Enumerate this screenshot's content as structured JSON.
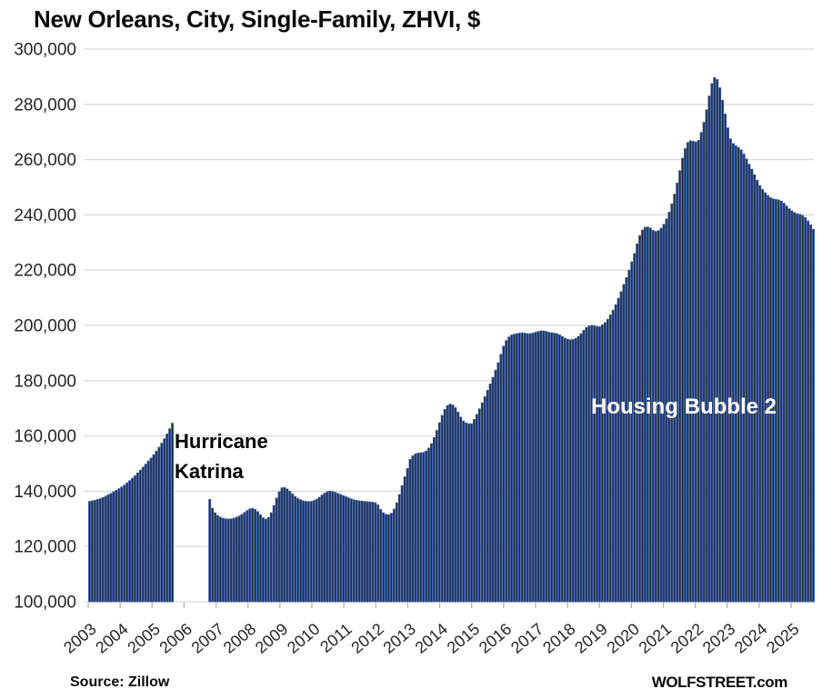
{
  "title": "New Orleans, City, Single-Family, ZHVI, $",
  "annotations": {
    "katrina_line1": "Hurricane",
    "katrina_line2": "Katrina",
    "bubble": "Housing Bubble 2"
  },
  "footer": {
    "source": "Source: Zillow",
    "brand": "WOLFSTREET.com"
  },
  "colors": {
    "bar_fill": "#1e2a40",
    "bar_stroke": "#35589a",
    "gridline": "#d9d9d9",
    "axis_tick": "#b3b3b3",
    "axis_text": "#262626",
    "annotation_dark": "#000000",
    "annotation_light": "#ffffff"
  },
  "chart_data": {
    "type": "bar",
    "title": "New Orleans, City, Single-Family, ZHVI, $",
    "xlabel": "",
    "ylabel": "",
    "unit": "$",
    "frequency": "monthly",
    "x_start": "2003-01",
    "x_end": "2025-08",
    "gap": {
      "from": "2005-09",
      "to": "2006-09",
      "annotation": "Hurricane Katrina"
    },
    "grid": true,
    "legend": "none",
    "ylim": [
      100000,
      300000
    ],
    "y_tick_step": 20000,
    "y_tick_labels": [
      "100,000",
      "120,000",
      "140,000",
      "160,000",
      "180,000",
      "200,000",
      "220,000",
      "240,000",
      "260,000",
      "280,000",
      "300,000"
    ],
    "x_tick_labels": [
      "2003",
      "2004",
      "2005",
      "2006",
      "2007",
      "2008",
      "2009",
      "2010",
      "2011",
      "2012",
      "2013",
      "2014",
      "2015",
      "2016",
      "2017",
      "2018",
      "2019",
      "2020",
      "2021",
      "2022",
      "2023",
      "2024",
      "2025"
    ],
    "values": [
      136300,
      136500,
      136700,
      137000,
      137300,
      137700,
      138200,
      138700,
      139200,
      139800,
      140300,
      140900,
      141500,
      142200,
      143000,
      143800,
      144700,
      145600,
      146600,
      147600,
      148700,
      149800,
      150900,
      152000,
      153200,
      154500,
      155900,
      157400,
      159000,
      160700,
      162600,
      164600,
      null,
      null,
      null,
      null,
      null,
      null,
      null,
      null,
      null,
      null,
      null,
      null,
      null,
      137000,
      133800,
      132200,
      131200,
      130600,
      130200,
      130000,
      129900,
      130000,
      130200,
      130600,
      131000,
      131600,
      132300,
      133000,
      133600,
      133800,
      133400,
      132600,
      131500,
      130400,
      129900,
      130500,
      132200,
      134800,
      137500,
      139800,
      141200,
      141300,
      140800,
      140000,
      139000,
      138100,
      137400,
      136900,
      136500,
      136300,
      136200,
      136300,
      136600,
      137100,
      137800,
      138600,
      139300,
      139800,
      140000,
      139900,
      139600,
      139200,
      138800,
      138400,
      138000,
      137600,
      137200,
      136900,
      136700,
      136500,
      136400,
      136300,
      136200,
      136100,
      136000,
      135800,
      135000,
      133400,
      132200,
      131600,
      131500,
      132000,
      133500,
      135800,
      138800,
      142000,
      145200,
      148200,
      151500,
      152800,
      153500,
      153800,
      153900,
      154000,
      154500,
      155600,
      157200,
      159400,
      162000,
      164800,
      167400,
      169600,
      171000,
      171500,
      171200,
      170200,
      168600,
      166800,
      165400,
      164700,
      164400,
      164400,
      166000,
      167800,
      169800,
      172000,
      174200,
      176500,
      178800,
      181200,
      183800,
      186500,
      189500,
      192500,
      194500,
      195800,
      196500,
      196800,
      197000,
      197200,
      197300,
      197200,
      197000,
      197000,
      197200,
      197500,
      197800,
      198000,
      198000,
      197800,
      197500,
      197300,
      197200,
      197000,
      196600,
      196000,
      195400,
      195000,
      194800,
      194900,
      195300,
      196000,
      197000,
      198200,
      199200,
      199800,
      200000,
      199900,
      199600,
      199500,
      200200,
      201000,
      202200,
      203800,
      205500,
      207500,
      209800,
      212200,
      214800,
      217300,
      220000,
      223000,
      226000,
      229500,
      232500,
      234500,
      235500,
      235600,
      235200,
      234400,
      234000,
      234300,
      235200,
      236600,
      238500,
      241000,
      244000,
      247500,
      251500,
      256000,
      260500,
      264000,
      266200,
      266800,
      266600,
      266400,
      267000,
      269800,
      273500,
      278000,
      283000,
      287500,
      289700,
      289000,
      286000,
      281500,
      276500,
      271500,
      267500,
      265800,
      265000,
      264400,
      263500,
      262000,
      260200,
      258300,
      256500,
      254500,
      252500,
      250600,
      249200,
      248000,
      247000,
      246200,
      245800,
      245600,
      245400,
      245000,
      244200,
      243200,
      242200,
      241400,
      240800,
      240400,
      240200,
      239800,
      239000,
      237800,
      236400,
      234800
    ]
  }
}
